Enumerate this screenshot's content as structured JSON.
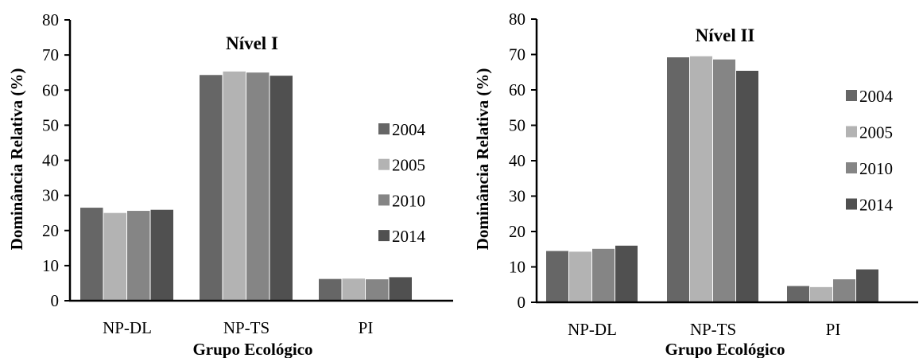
{
  "chart_data": [
    {
      "type": "bar",
      "title": "Nível I",
      "xlabel": "Grupo Ecológico",
      "ylabel": "Dominância Relativa (%)",
      "ylim": [
        0,
        80
      ],
      "yticks": [
        0,
        10,
        20,
        30,
        40,
        50,
        60,
        70,
        80
      ],
      "categories": [
        "NP-DL",
        "NP-TS",
        "PI"
      ],
      "legend_position": "right",
      "series": [
        {
          "name": "2004",
          "color": "#666666",
          "values": [
            26.5,
            64.3,
            6.2
          ]
        },
        {
          "name": "2005",
          "color": "#b3b3b3",
          "values": [
            25.0,
            65.3,
            6.3
          ]
        },
        {
          "name": "2010",
          "color": "#858585",
          "values": [
            25.6,
            65.0,
            6.1
          ]
        },
        {
          "name": "2014",
          "color": "#505050",
          "values": [
            25.9,
            64.1,
            6.7
          ]
        }
      ]
    },
    {
      "type": "bar",
      "title": "Nível II",
      "xlabel": "Grupo Ecológico",
      "ylabel": "Dominância Relativa (%)",
      "ylim": [
        0,
        80
      ],
      "yticks": [
        0,
        10,
        20,
        30,
        40,
        50,
        60,
        70,
        80
      ],
      "categories": [
        "NP-DL",
        "NP-TS",
        "PI"
      ],
      "legend_position": "right",
      "series": [
        {
          "name": "2004",
          "color": "#666666",
          "values": [
            14.5,
            69.2,
            4.6
          ]
        },
        {
          "name": "2005",
          "color": "#b3b3b3",
          "values": [
            14.3,
            69.5,
            4.3
          ]
        },
        {
          "name": "2010",
          "color": "#858585",
          "values": [
            15.1,
            68.6,
            6.5
          ]
        },
        {
          "name": "2014",
          "color": "#505050",
          "values": [
            16.0,
            65.4,
            9.3
          ]
        }
      ]
    }
  ]
}
